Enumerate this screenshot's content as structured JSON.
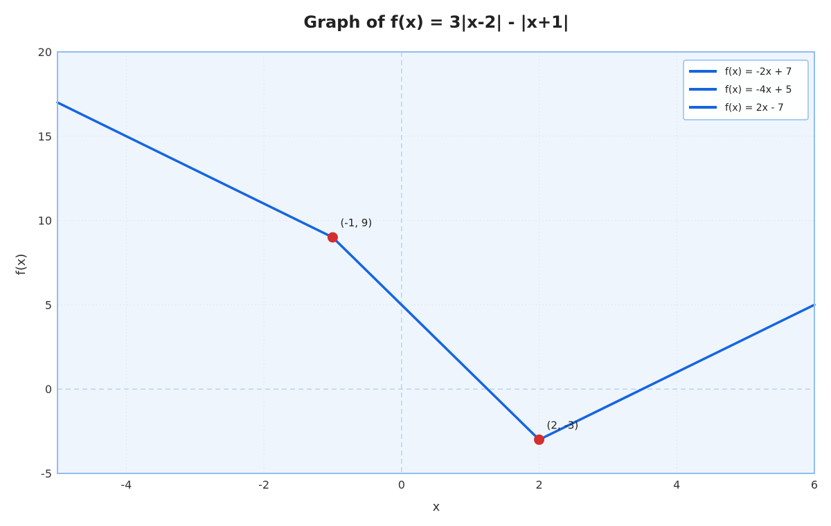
{
  "chart_data": {
    "type": "line",
    "title": "Graph of f(x) = 3|x-2| - |x+1|",
    "xlabel": "x",
    "ylabel": "f(x)",
    "xlim": [
      -5,
      6
    ],
    "ylim": [
      -5,
      20
    ],
    "x_ticks": [
      -4,
      -2,
      0,
      2,
      4,
      6
    ],
    "y_ticks": [
      -5,
      0,
      5,
      10,
      15,
      20
    ],
    "x_tick_labels": [
      "-4",
      "-2",
      "0",
      "2",
      "4",
      "6"
    ],
    "y_tick_labels": [
      "-5",
      "0",
      "5",
      "10",
      "15",
      "20"
    ],
    "grid": true,
    "legend_position": "top-right",
    "series": [
      {
        "name": "f(x) = -2x + 7",
        "x": [
          -5,
          -1
        ],
        "y": [
          17,
          9
        ],
        "color": "#1565e0"
      },
      {
        "name": "f(x) = -4x + 5",
        "x": [
          -1,
          2
        ],
        "y": [
          9,
          -3
        ],
        "color": "#1565e0"
      },
      {
        "name": "f(x) = 2x - 7",
        "x": [
          2,
          6
        ],
        "y": [
          -3,
          5
        ],
        "color": "#1565e0"
      }
    ],
    "points": [
      {
        "x": -1,
        "y": 9,
        "label": "(-1, 9)",
        "color": "#d32f2f"
      },
      {
        "x": 2,
        "y": -3,
        "label": "(2, -3)",
        "color": "#d32f2f"
      }
    ],
    "colors": {
      "plot_background": "#eef5fd",
      "frame": "#90bdf0",
      "zero_lines": "#b8d4f2",
      "grid": "#dde8f5"
    }
  }
}
